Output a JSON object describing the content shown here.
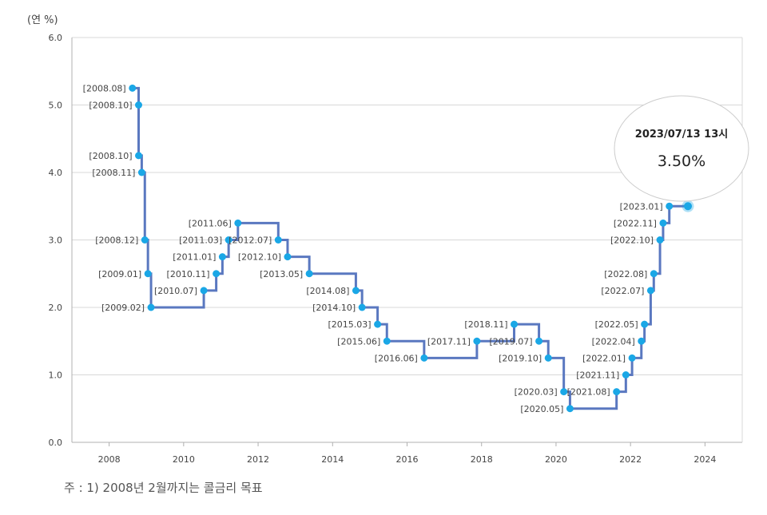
{
  "unit_label": "(연 %)",
  "footnote": "주 : 1) 2008년 2월까지는 콜금리 목표",
  "tooltip": {
    "title": "2023/07/13 13시",
    "value": "3.50%"
  },
  "colors": {
    "line": "#5a78c0",
    "point": "#1aa7e6",
    "grid": "#d8d8d8",
    "axis": "#b0b0b0"
  },
  "chart_data": {
    "type": "line",
    "step": true,
    "ylim": [
      0,
      6
    ],
    "xlim": [
      2007.0,
      2025.0
    ],
    "yticks": [
      "0.0",
      "1.0",
      "2.0",
      "3.0",
      "4.0",
      "5.0",
      "6.0"
    ],
    "xticks": [
      "2008",
      "2010",
      "2012",
      "2014",
      "2016",
      "2018",
      "2020",
      "2022",
      "2024"
    ],
    "grid": true,
    "series": [
      {
        "points": [
          {
            "x": "2008-08",
            "y": 5.25,
            "label": "[2008.08]"
          },
          {
            "x": "2008-10",
            "y": 5.0,
            "label": "[2008.10]"
          },
          {
            "x": "2008-10",
            "y": 4.25,
            "label": "[2008.10]"
          },
          {
            "x": "2008-11",
            "y": 4.0,
            "label": "[2008.11]"
          },
          {
            "x": "2008-12",
            "y": 3.0,
            "label": "[2008.12]"
          },
          {
            "x": "2009-01",
            "y": 2.5,
            "label": "[2009.01]"
          },
          {
            "x": "2009-02",
            "y": 2.0,
            "label": "[2009.02]"
          },
          {
            "x": "2010-07",
            "y": 2.25,
            "label": "[2010.07]"
          },
          {
            "x": "2010-11",
            "y": 2.5,
            "label": "[2010.11]"
          },
          {
            "x": "2011-01",
            "y": 2.75,
            "label": "[2011.01]"
          },
          {
            "x": "2011-03",
            "y": 3.0,
            "label": "[2011.03]"
          },
          {
            "x": "2011-06",
            "y": 3.25,
            "label": "[2011.06]"
          },
          {
            "x": "2012-07",
            "y": 3.0,
            "label": "[2012.07]"
          },
          {
            "x": "2012-10",
            "y": 2.75,
            "label": "[2012.10]"
          },
          {
            "x": "2013-05",
            "y": 2.5,
            "label": "[2013.05]"
          },
          {
            "x": "2014-08",
            "y": 2.25,
            "label": "[2014.08]"
          },
          {
            "x": "2014-10",
            "y": 2.0,
            "label": "[2014.10]"
          },
          {
            "x": "2015-03",
            "y": 1.75,
            "label": "[2015.03]"
          },
          {
            "x": "2015-06",
            "y": 1.5,
            "label": "[2015.06]"
          },
          {
            "x": "2016-06",
            "y": 1.25,
            "label": "[2016.06]"
          },
          {
            "x": "2017-11",
            "y": 1.5,
            "label": "[2017.11]"
          },
          {
            "x": "2018-11",
            "y": 1.75,
            "label": "[2018.11]"
          },
          {
            "x": "2019-07",
            "y": 1.5,
            "label": "[2019.07]"
          },
          {
            "x": "2019-10",
            "y": 1.25,
            "label": "[2019.10]"
          },
          {
            "x": "2020-03",
            "y": 0.75,
            "label": "[2020.03]"
          },
          {
            "x": "2020-05",
            "y": 0.5,
            "label": "[2020.05]"
          },
          {
            "x": "2021-08",
            "y": 0.75,
            "label": "[2021.08]"
          },
          {
            "x": "2021-11",
            "y": 1.0,
            "label": "[2021.11]"
          },
          {
            "x": "2022-01",
            "y": 1.25,
            "label": "[2022.01]"
          },
          {
            "x": "2022-04",
            "y": 1.5,
            "label": "[2022.04]"
          },
          {
            "x": "2022-05",
            "y": 1.75,
            "label": "[2022.05]"
          },
          {
            "x": "2022-07",
            "y": 2.25,
            "label": "[2022.07]"
          },
          {
            "x": "2022-08",
            "y": 2.5,
            "label": "[2022.08]"
          },
          {
            "x": "2022-10",
            "y": 3.0,
            "label": "[2022.10]"
          },
          {
            "x": "2022-11",
            "y": 3.25,
            "label": "[2022.11]"
          },
          {
            "x": "2023-01",
            "y": 3.5,
            "label": "[2023.01]"
          },
          {
            "x": "2023-07",
            "y": 3.5,
            "label": ""
          }
        ]
      }
    ]
  }
}
